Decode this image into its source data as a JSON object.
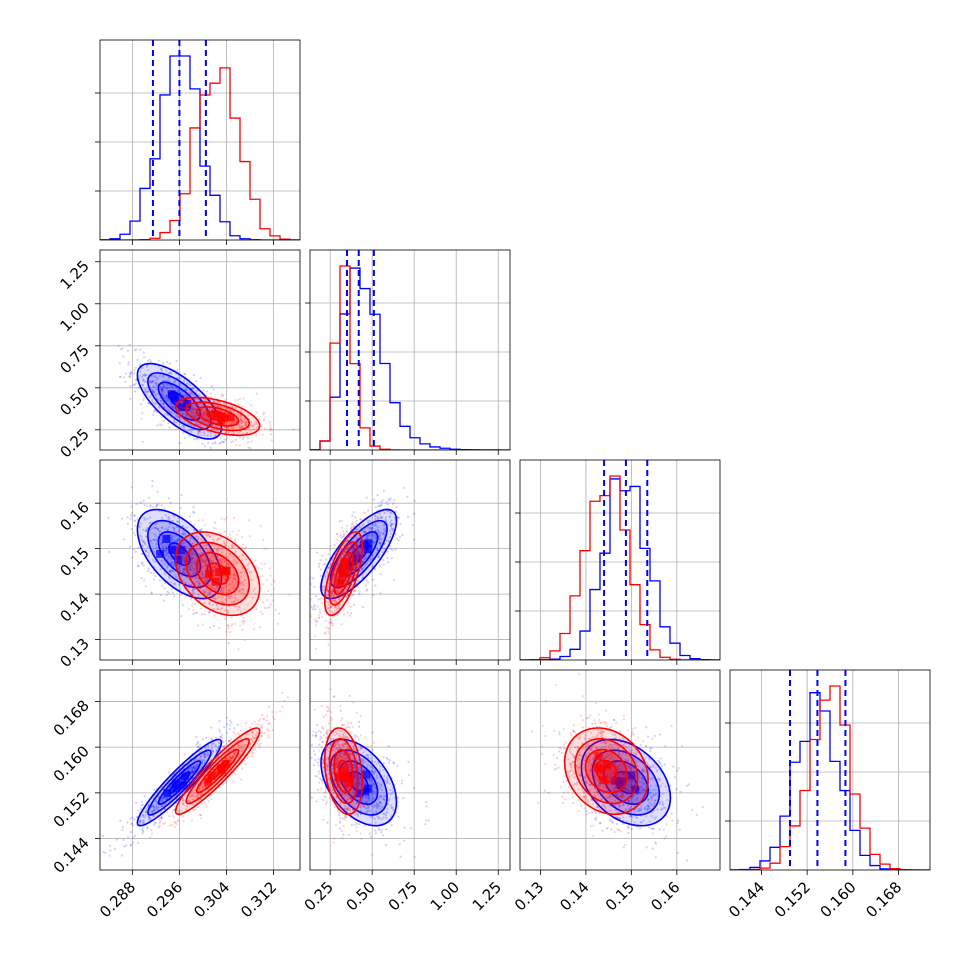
{
  "chart_data": {
    "type": "corner",
    "n_params": 4,
    "grid": true,
    "colors": {
      "blue": "#0000ff",
      "red": "#ff0000"
    },
    "params": [
      {
        "range": [
          0.2825,
          0.3165
        ],
        "ticks": [
          0.288,
          0.296,
          0.304,
          0.312
        ],
        "tick_labels": [
          "0.288",
          "0.296",
          "0.304",
          "0.312"
        ]
      },
      {
        "range": [
          0.13,
          1.32
        ],
        "ticks": [
          0.25,
          0.5,
          0.75,
          1.0,
          1.25
        ],
        "tick_labels": [
          "0.25",
          "0.50",
          "0.75",
          "1.00",
          "1.25"
        ]
      },
      {
        "range": [
          0.1255,
          0.1695
        ],
        "ticks": [
          0.13,
          0.14,
          0.15,
          0.16
        ],
        "tick_labels": [
          "0.13",
          "0.14",
          "0.15",
          "0.16"
        ]
      },
      {
        "range": [
          0.1385,
          0.1735
        ],
        "ticks": [
          0.144,
          0.152,
          0.16,
          0.168
        ],
        "tick_labels": [
          "0.144",
          "0.152",
          "0.160",
          "0.168"
        ]
      }
    ],
    "series": [
      {
        "color": "blue",
        "mean": [
          0.296,
          0.42,
          0.1488,
          0.1538
        ],
        "sd": [
          0.0035,
          0.11,
          0.0048,
          0.0037
        ],
        "corr": {
          "0-1": -0.7,
          "0-2": -0.55,
          "0-3": 0.93,
          "1-2": 0.75,
          "1-3": -0.45,
          "2-3": -0.35
        }
      },
      {
        "color": "red",
        "mean": [
          0.3025,
          0.33,
          0.1445,
          0.1558
        ],
        "sd": [
          0.0035,
          0.055,
          0.0045,
          0.0037
        ],
        "corr": {
          "0-1": -0.5,
          "0-2": -0.35,
          "0-3": 0.93,
          "1-2": 0.65,
          "1-3": -0.25,
          "2-3": -0.2
        }
      }
    ],
    "quantiles": [
      [
        0.2915,
        0.296,
        0.3005
      ],
      [
        0.35,
        0.42,
        0.51
      ],
      [
        0.144,
        0.1488,
        0.1535
      ],
      [
        0.149,
        0.1538,
        0.1587
      ]
    ],
    "quantile_color": "blue",
    "contour_levels_sigma": [
      0.5,
      1.0,
      1.5,
      2.0
    ]
  }
}
